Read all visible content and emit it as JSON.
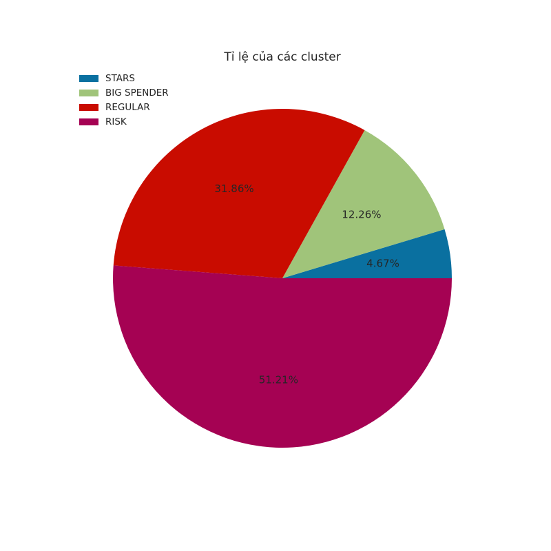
{
  "chart_data": {
    "type": "pie",
    "title": "Tỉ lệ của các cluster",
    "categories": [
      "STARS",
      "BIG SPENDER",
      "REGULAR",
      "RISK"
    ],
    "values": [
      4.67,
      12.26,
      31.86,
      51.21
    ],
    "labels": [
      "4.67%",
      "12.26%",
      "31.86%",
      "51.21%"
    ],
    "colors": [
      "#0a70a0",
      "#a0c47a",
      "#c90c00",
      "#a50253"
    ],
    "start_angle_deg": 0,
    "direction": "counterclockwise",
    "legend_position": "top-left"
  }
}
